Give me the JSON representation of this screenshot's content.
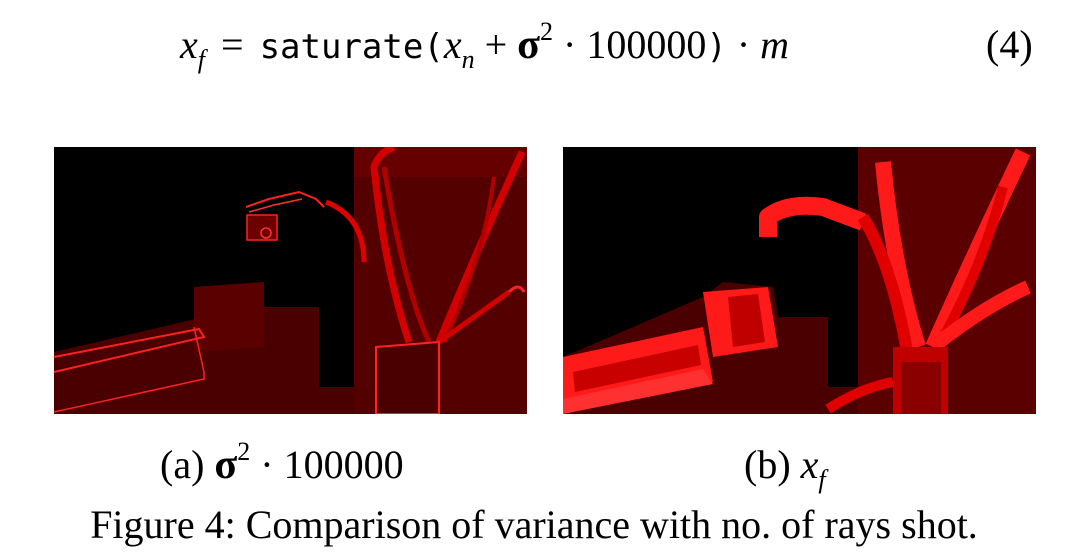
{
  "equation": {
    "lhs_var": "x",
    "lhs_sub": "f",
    "equals": "=",
    "func": "saturate",
    "open": "(",
    "arg_var": "x",
    "arg_sub": "n",
    "plus": "+",
    "sigma": "σ",
    "sigma_exp": "2",
    "dot1": "·",
    "constant": "100000",
    "close": ")",
    "dot2": "·",
    "mask_var": "m",
    "number": "(4)"
  },
  "subfigures": [
    {
      "label": "(a)",
      "sigma": "σ",
      "exp": "2",
      "dot": "·",
      "constant": "100000"
    },
    {
      "label": "(b)",
      "var": "x",
      "sub": "f"
    }
  ],
  "caption": "Figure 4: Comparison of variance with no. of rays shot.",
  "colors": {
    "background": "#000000",
    "dark_red": "#5a0000",
    "bright_red": "#ff1a1a",
    "mid_red": "#b80000"
  }
}
